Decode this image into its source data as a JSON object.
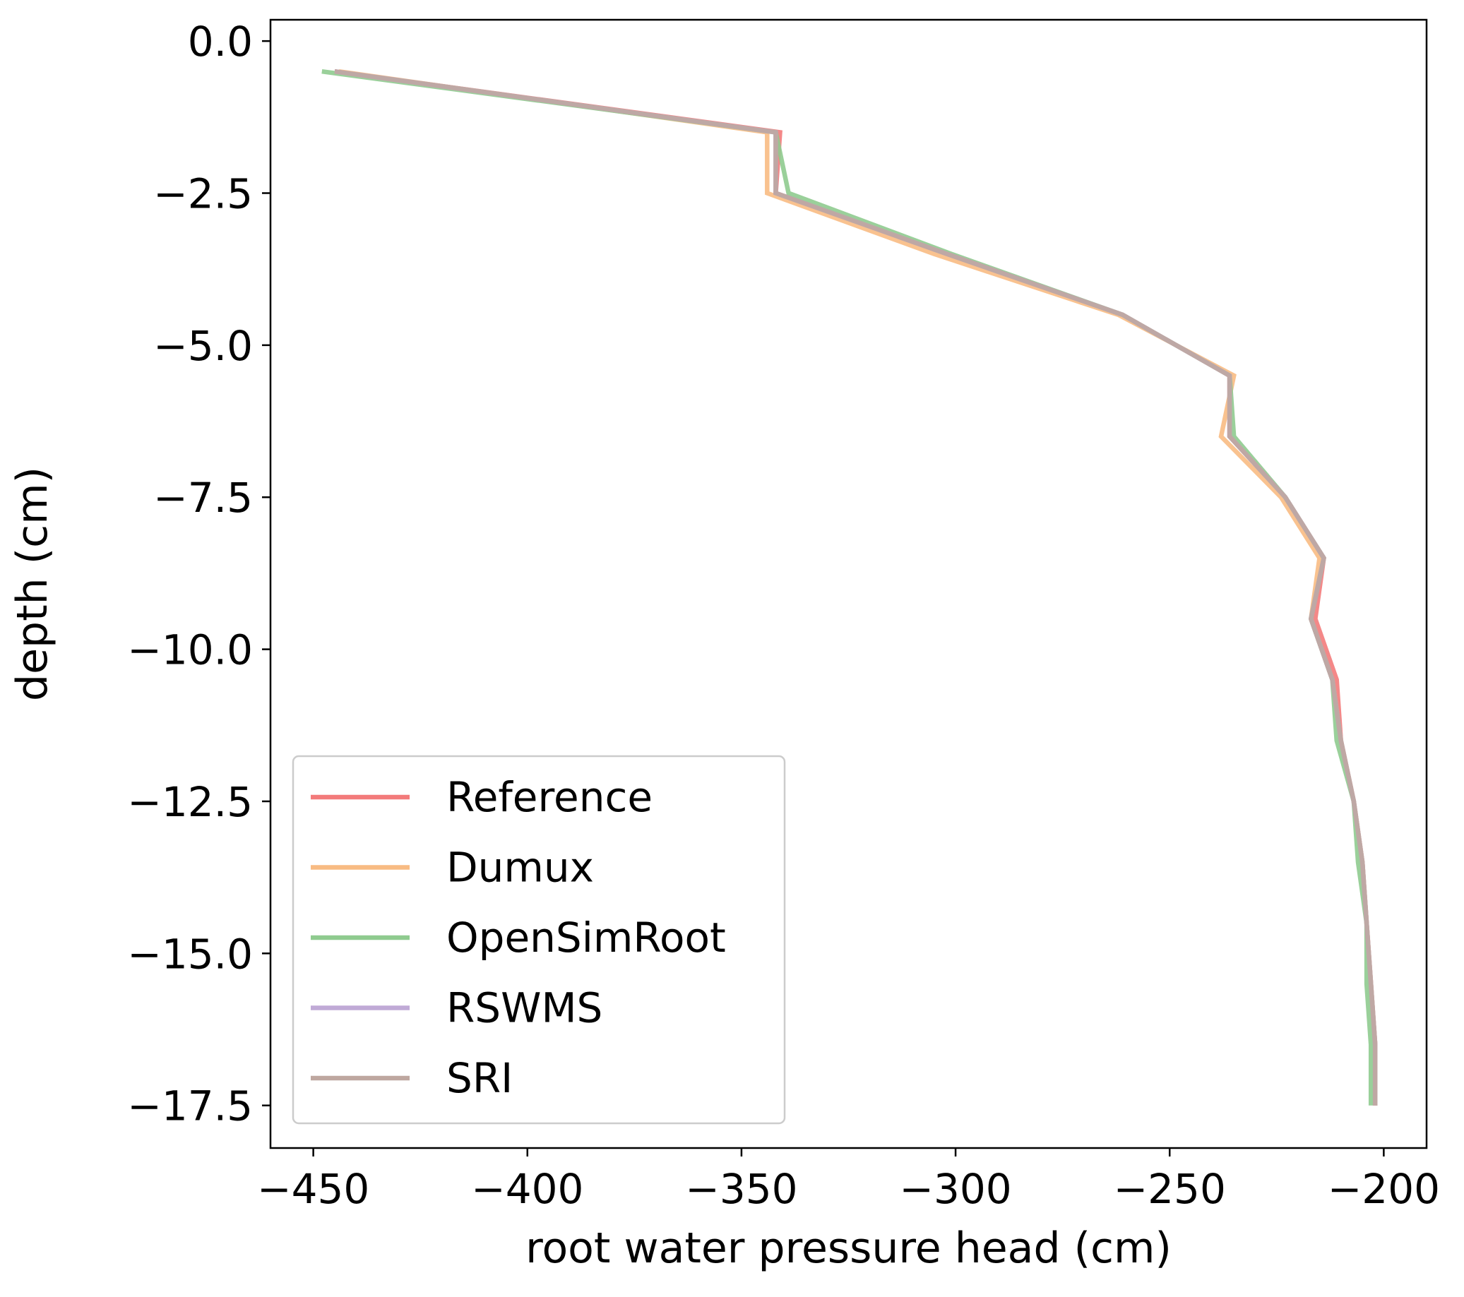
{
  "chart_data": {
    "type": "line",
    "title": "",
    "xlabel": "root water pressure head (cm)",
    "ylabel": "depth (cm)",
    "xlim": [
      -460,
      -190
    ],
    "ylim": [
      -18.2,
      0.35
    ],
    "xticks": [
      -450,
      -400,
      -350,
      -300,
      -250,
      -200
    ],
    "xtick_labels": [
      "−450",
      "−400",
      "−350",
      "−300",
      "−250",
      "−200"
    ],
    "yticks": [
      0.0,
      -2.5,
      -5.0,
      -7.5,
      -10.0,
      -12.5,
      -15.0,
      -17.5
    ],
    "ytick_labels": [
      "0.0",
      "−2.5",
      "−5.0",
      "−7.5",
      "−10.0",
      "−12.5",
      "−15.0",
      "−17.5"
    ],
    "grid": false,
    "legend_position": "lower-left",
    "y": [
      -0.5,
      -1.5,
      -2.5,
      -3.5,
      -4.5,
      -5.5,
      -6.5,
      -7.5,
      -8.5,
      -9.5,
      -10.5,
      -11.5,
      -12.5,
      -13.5,
      -14.5,
      -15.5,
      -16.5,
      -17.5
    ],
    "series": [
      {
        "name": "Reference",
        "color": "#f37b7b",
        "values": [
          -445,
          -341,
          -342,
          -302,
          -261,
          -236,
          -236,
          -223,
          -214,
          -216,
          -211,
          -210,
          -207,
          -205,
          -204,
          -203,
          -202,
          -202
        ]
      },
      {
        "name": "Dumux",
        "color": "#f8bb83",
        "values": [
          -444,
          -344,
          -344,
          -305,
          -262,
          -235,
          -238,
          -224,
          -215,
          -217,
          -212,
          -210,
          -207,
          -205,
          -204,
          -203,
          -202,
          -202
        ]
      },
      {
        "name": "OpenSimRoot",
        "color": "#8fcb8f",
        "values": [
          -448,
          -342,
          -339,
          -301,
          -261,
          -236,
          -235,
          -223,
          -214,
          -217,
          -212,
          -211,
          -207,
          -206,
          -204,
          -204,
          -203,
          -203
        ]
      },
      {
        "name": "RSWMS",
        "color": "#c0aad6",
        "values": [
          -445,
          -342,
          -342,
          -302,
          -261,
          -236,
          -236,
          -223,
          -214,
          -217,
          -212,
          -210,
          -207,
          -205,
          -204,
          -203,
          -202,
          -202
        ]
      },
      {
        "name": "SRI",
        "color": "#bea7a0",
        "values": [
          -445,
          -342,
          -342,
          -302,
          -261,
          -236,
          -236,
          -223,
          -214,
          -217,
          -212,
          -210,
          -207,
          -205,
          -204,
          -203,
          -202,
          -202
        ]
      }
    ]
  }
}
